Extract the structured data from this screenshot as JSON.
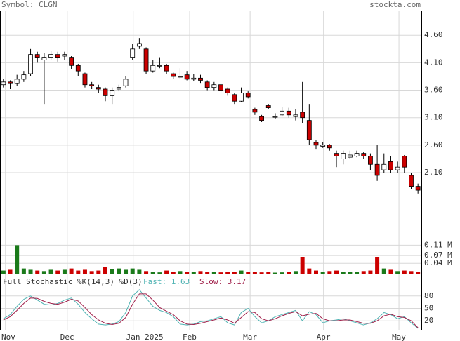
{
  "header": {
    "symbol": "Symbol: CLGN",
    "site": "stockta.com"
  },
  "chart_data": [
    {
      "type": "candlestick",
      "x_ticks": [
        {
          "value": 0.3,
          "label": "Nov"
        },
        {
          "value": 9.4,
          "label": "Dec"
        },
        {
          "value": 19.1,
          "label": "Jan 2025"
        },
        {
          "value": 27.4,
          "label": "Feb"
        },
        {
          "value": 36.3,
          "label": "Mar"
        },
        {
          "value": 47.1,
          "label": "Apr"
        },
        {
          "value": 58.2,
          "label": "May"
        }
      ],
      "open": [
        3.7,
        3.75,
        3.72,
        3.8,
        3.9,
        4.25,
        4.15,
        4.2,
        4.25,
        4.22,
        4.2,
        4.05,
        3.9,
        3.7,
        3.65,
        3.62,
        3.5,
        3.62,
        3.68,
        4.2,
        4.4,
        4.35,
        3.95,
        4.05,
        4.05,
        3.9,
        3.85,
        3.88,
        3.8,
        3.82,
        3.75,
        3.65,
        3.7,
        3.62,
        3.52,
        3.4,
        3.55,
        3.25,
        3.12,
        3.32,
        3.12,
        3.15,
        3.22,
        3.12,
        3.2,
        3.05,
        2.65,
        2.58,
        2.6,
        2.45,
        2.35,
        2.38,
        2.4,
        2.45,
        2.4,
        2.25,
        2.15,
        2.3,
        2.15,
        2.4,
        2.05,
        1.85
      ],
      "high": [
        3.8,
        3.78,
        3.88,
        3.95,
        4.35,
        4.3,
        4.28,
        4.32,
        4.3,
        4.3,
        4.22,
        4.08,
        3.92,
        3.75,
        3.7,
        3.65,
        3.65,
        3.7,
        3.85,
        4.45,
        4.55,
        4.38,
        4.15,
        4.2,
        4.08,
        3.92,
        4.0,
        3.95,
        3.9,
        3.88,
        3.78,
        3.75,
        3.72,
        3.65,
        3.55,
        3.65,
        3.58,
        3.28,
        3.15,
        3.35,
        3.18,
        3.3,
        3.28,
        3.25,
        3.75,
        3.35,
        2.7,
        2.65,
        2.62,
        2.5,
        2.5,
        2.5,
        2.5,
        2.48,
        2.45,
        2.6,
        2.45,
        2.4,
        2.3,
        2.42,
        2.1,
        1.9
      ],
      "low": [
        3.65,
        3.62,
        3.68,
        3.75,
        3.85,
        4.1,
        3.35,
        4.15,
        4.12,
        4.15,
        3.98,
        3.85,
        3.65,
        3.62,
        3.55,
        3.4,
        3.35,
        3.58,
        3.65,
        4.15,
        4.35,
        3.9,
        3.92,
        4.0,
        3.9,
        3.8,
        3.8,
        3.78,
        3.76,
        3.72,
        3.6,
        3.6,
        3.55,
        3.5,
        3.35,
        3.38,
        3.45,
        3.15,
        3.02,
        3.25,
        3.08,
        3.12,
        3.1,
        3.05,
        3.0,
        2.6,
        2.52,
        2.55,
        2.5,
        2.2,
        2.25,
        2.35,
        2.38,
        2.35,
        2.15,
        1.95,
        2.1,
        2.1,
        2.1,
        2.1,
        1.8,
        1.72
      ],
      "close": [
        3.75,
        3.72,
        3.8,
        3.88,
        4.25,
        4.2,
        4.2,
        4.25,
        4.2,
        4.25,
        4.05,
        3.95,
        3.7,
        3.68,
        3.62,
        3.5,
        3.6,
        3.65,
        3.8,
        4.35,
        4.45,
        3.95,
        4.05,
        4.05,
        3.95,
        3.85,
        3.85,
        3.8,
        3.82,
        3.78,
        3.65,
        3.7,
        3.6,
        3.55,
        3.4,
        3.55,
        3.48,
        3.2,
        3.05,
        3.28,
        3.12,
        3.22,
        3.15,
        3.15,
        3.1,
        2.7,
        2.6,
        2.6,
        2.55,
        2.4,
        2.45,
        2.42,
        2.45,
        2.4,
        2.25,
        2.05,
        2.25,
        2.15,
        2.2,
        2.2,
        1.85,
        1.78
      ],
      "ylim": [
        0.9,
        5.05
      ],
      "yticks": [
        {
          "value": 4.6,
          "label": "4.60"
        },
        {
          "value": 4.1,
          "label": "4.10"
        },
        {
          "value": 3.6,
          "label": "3.60"
        },
        {
          "value": 3.1,
          "label": "3.10"
        },
        {
          "value": 2.6,
          "label": "2.60"
        },
        {
          "value": 2.1,
          "label": "2.10"
        }
      ],
      "up_color": "#ffffff",
      "down_color": "#cc0000",
      "grid": true
    },
    {
      "type": "volume",
      "values": [
        0.012,
        0.015,
        0.11,
        0.02,
        0.015,
        0.012,
        0.01,
        0.015,
        0.012,
        0.015,
        0.02,
        0.012,
        0.015,
        0.01,
        0.012,
        0.025,
        0.018,
        0.02,
        0.015,
        0.02,
        0.015,
        0.01,
        0.008,
        0.005,
        0.012,
        0.008,
        0.01,
        0.006,
        0.008,
        0.01,
        0.008,
        0.006,
        0.005,
        0.006,
        0.008,
        0.012,
        0.006,
        0.008,
        0.005,
        0.006,
        0.004,
        0.005,
        0.006,
        0.01,
        0.065,
        0.02,
        0.012,
        0.008,
        0.01,
        0.012,
        0.008,
        0.006,
        0.008,
        0.01,
        0.012,
        0.065,
        0.02,
        0.015,
        0.01,
        0.012,
        0.01,
        0.008
      ],
      "ylim": [
        0,
        0.13
      ],
      "yticks": [
        {
          "value": 0.11,
          "label": "0.11 M"
        },
        {
          "value": 0.07,
          "label": "0.07 M"
        },
        {
          "value": 0.04,
          "label": "0.04 M"
        }
      ],
      "up_color": "#1a7a1a",
      "down_color": "#cc0000",
      "grid": true
    },
    {
      "type": "line",
      "title": "Full Stochastic %K(14,3) %D(3)",
      "series": [
        {
          "name": "Fast: 1.63",
          "color": "#4fb3b3",
          "values": [
            25,
            35,
            55,
            72,
            80,
            70,
            60,
            58,
            62,
            70,
            75,
            60,
            40,
            25,
            12,
            10,
            12,
            18,
            40,
            80,
            95,
            75,
            55,
            45,
            40,
            30,
            12,
            10,
            12,
            18,
            20,
            25,
            30,
            15,
            10,
            40,
            50,
            30,
            15,
            20,
            30,
            35,
            40,
            45,
            20,
            42,
            35,
            15,
            20,
            22,
            25,
            20,
            15,
            10,
            15,
            25,
            40,
            35,
            25,
            30,
            15,
            1.63
          ]
        },
        {
          "name": "Slow: 3.17",
          "color": "#a0204a",
          "values": [
            22,
            30,
            45,
            62,
            75,
            74,
            67,
            62,
            60,
            65,
            72,
            68,
            52,
            35,
            22,
            14,
            11,
            14,
            28,
            60,
            85,
            85,
            70,
            52,
            43,
            35,
            20,
            12,
            11,
            14,
            18,
            22,
            27,
            22,
            14,
            28,
            42,
            40,
            25,
            20,
            25,
            32,
            38,
            42,
            32,
            36,
            38,
            25,
            20,
            20,
            22,
            22,
            18,
            14,
            14,
            20,
            32,
            36,
            30,
            28,
            20,
            3.17
          ]
        }
      ],
      "ylim": [
        0,
        100
      ],
      "yticks": [
        80,
        50,
        20
      ],
      "grid": true
    }
  ]
}
